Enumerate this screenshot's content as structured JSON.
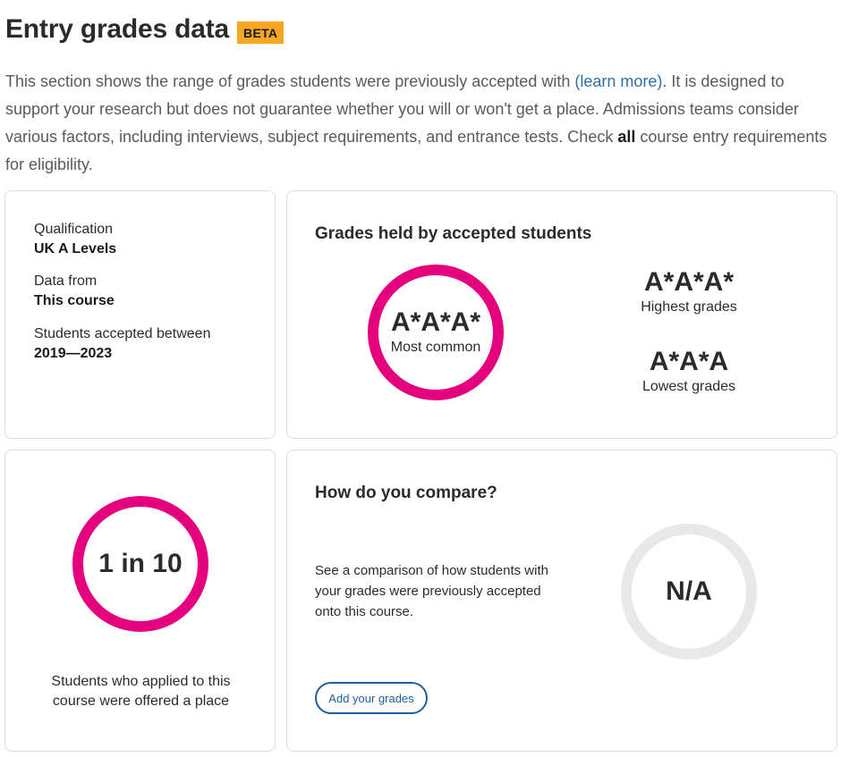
{
  "header": {
    "title": "Entry grades data",
    "badge": "BETA"
  },
  "intro": {
    "text_before_link": "This section shows the range of grades students were previously accepted with ",
    "link_text": "(learn more)",
    "text_after_link": ". It is designed to support your research but does not guarantee whether you will or won't get a place. Admissions teams consider various factors, including interviews, subject requirements, and entrance tests. Check ",
    "bold_text": "all",
    "text_end": " course entry requirements for eligibility."
  },
  "info": {
    "qualification_label": "Qualification",
    "qualification_value": "UK A Levels",
    "data_from_label": "Data from",
    "data_from_value": "This course",
    "accepted_label": "Students accepted between",
    "accepted_value": "2019—2023"
  },
  "grades": {
    "heading": "Grades held by accepted students",
    "most_common_value": "A*A*A*",
    "most_common_label": "Most common",
    "highest_value": "A*A*A*",
    "highest_label": "Highest grades",
    "lowest_value": "A*A*A",
    "lowest_label": "Lowest grades"
  },
  "ratio": {
    "value": "1 in 10",
    "caption": "Students who applied to this course were offered a place"
  },
  "compare": {
    "heading": "How do you compare?",
    "text": "See a comparison of how students with your grades were previously accepted onto this course.",
    "value": "N/A",
    "button_label": "Add your grades"
  },
  "colors": {
    "accent_pink": "#e5007e",
    "badge_orange": "#f5a623",
    "link_blue": "#2f6fa8",
    "button_blue": "#1d5f9e",
    "ring_grey": "#e8e8e8"
  }
}
